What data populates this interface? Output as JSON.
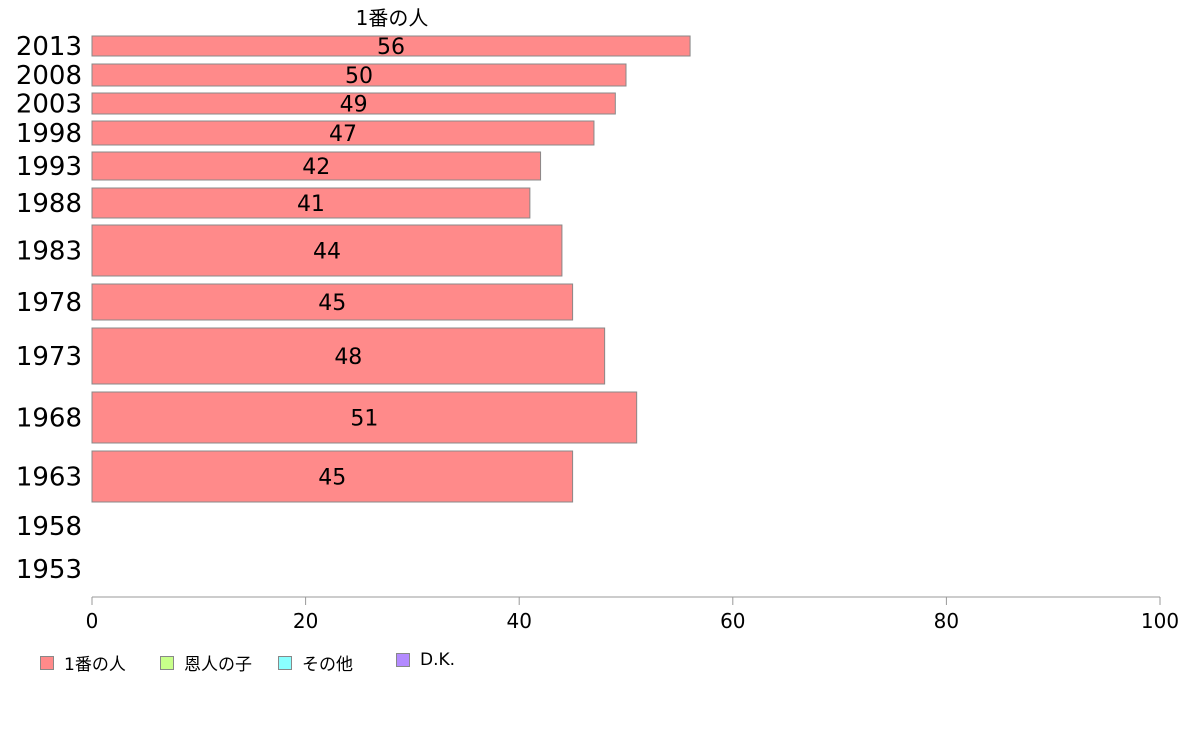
{
  "chart_data": {
    "type": "bar",
    "orientation": "horizontal",
    "title": "1番の人",
    "categories": [
      "2013",
      "2008",
      "2003",
      "1998",
      "1993",
      "1988",
      "1983",
      "1978",
      "1973",
      "1968",
      "1963",
      "1958",
      "1953"
    ],
    "series": [
      {
        "name": "1番の人",
        "color": "#ff8a8a",
        "values": [
          56,
          50,
          49,
          47,
          42,
          41,
          44,
          45,
          48,
          51,
          45,
          null,
          null
        ]
      }
    ],
    "value_labels": [
      "56",
      "50",
      "49",
      "47",
      "42",
      "41",
      "44",
      "45",
      "48",
      "51",
      "45",
      "",
      ""
    ],
    "xlim": [
      0,
      100
    ],
    "xticks": [
      "0",
      "20",
      "40",
      "60",
      "80",
      "100"
    ],
    "grid": false,
    "legend_position": "bottom-left"
  },
  "legend": [
    {
      "label": "1番の人",
      "color": "#ff8a8a"
    },
    {
      "label": "恩人の子",
      "color": "#c8ff8a"
    },
    {
      "label": "その他",
      "color": "#8affff"
    },
    {
      "label": "D.K.",
      "color": "#b38aff"
    }
  ]
}
